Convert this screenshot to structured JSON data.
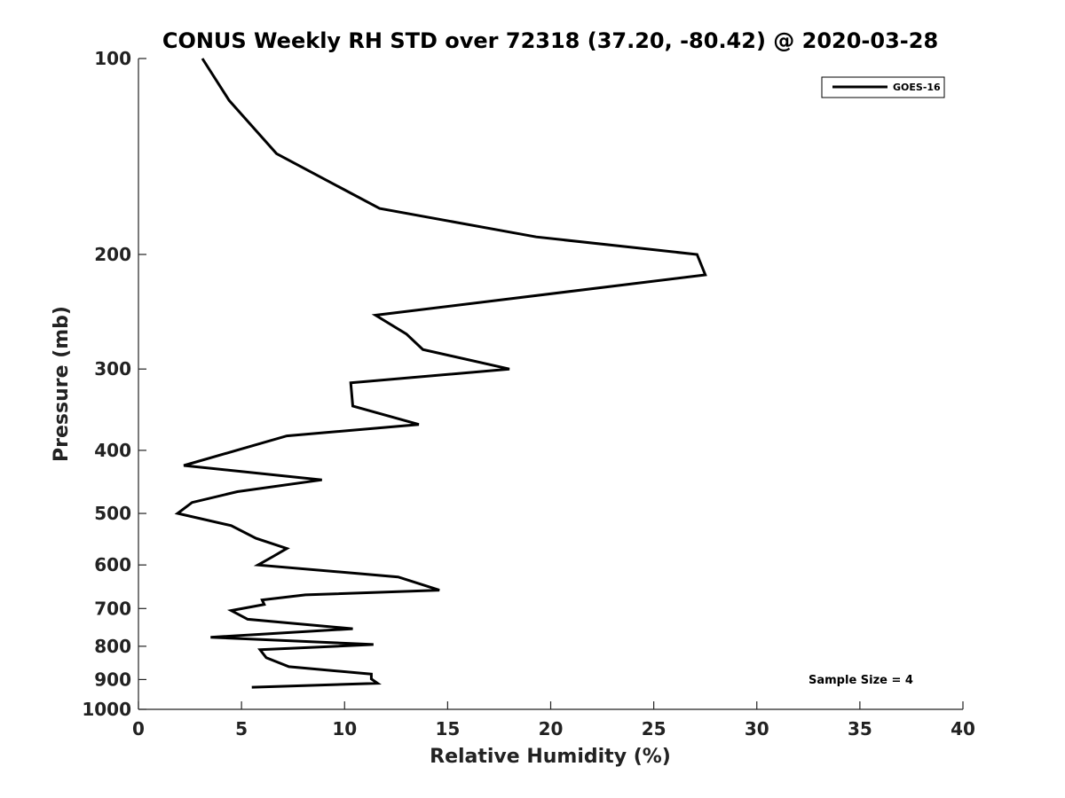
{
  "chart_data": {
    "type": "line",
    "title": "CONUS Weekly RH STD over 72318 (37.20, -80.42) @ 2020-03-28",
    "xlabel": "Relative Humidity (%)",
    "ylabel": "Pressure (mb)",
    "xlim": [
      0,
      40
    ],
    "ylim": [
      100,
      1000
    ],
    "yscale": "log",
    "yreverse": true,
    "xticks": [
      0,
      5,
      10,
      15,
      20,
      25,
      30,
      35,
      40
    ],
    "yticks": [
      100,
      200,
      300,
      400,
      500,
      600,
      700,
      800,
      900,
      1000
    ],
    "grid": false,
    "legend_position": "top-right",
    "series": [
      {
        "name": "GOES-16",
        "color": "#000000",
        "x": [
          3.1,
          4.4,
          6.7,
          11.7,
          19.3,
          27.1,
          27.5,
          11.5,
          13.0,
          13.8,
          18.0,
          10.3,
          10.4,
          13.6,
          7.2,
          2.2,
          8.9,
          4.8,
          2.6,
          1.9,
          4.5,
          5.7,
          7.2,
          6.5,
          5.8,
          12.6,
          14.6,
          8.1,
          6.0,
          6.1,
          4.5,
          5.3,
          10.4,
          3.5,
          11.4,
          5.9,
          6.2,
          7.3,
          11.3,
          11.3,
          11.6,
          5.5
        ],
        "y": [
          100,
          116,
          140,
          170,
          188,
          200,
          215,
          248,
          265,
          280,
          300,
          315,
          342,
          365,
          380,
          422,
          444,
          463,
          481,
          500,
          522,
          546,
          566,
          583,
          600,
          626,
          656,
          667,
          679,
          690,
          705,
          727,
          752,
          775,
          795,
          810,
          833,
          860,
          883,
          898,
          912,
          925
        ]
      }
    ],
    "annotations": [
      "Sample Size = 4"
    ]
  }
}
